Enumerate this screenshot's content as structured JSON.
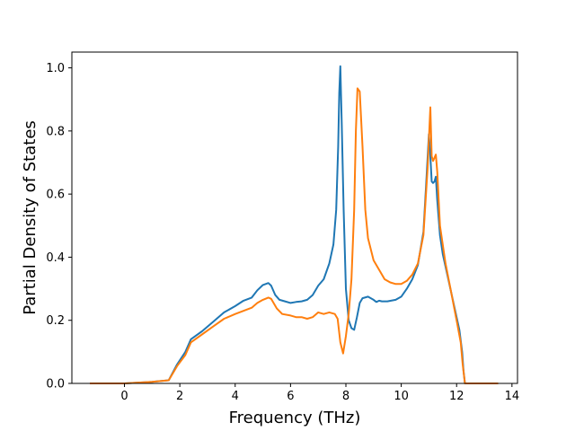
{
  "chart_data": {
    "type": "line",
    "title": "",
    "xlabel": "Frequency (THz)",
    "ylabel": "Partial Density of States",
    "xlim": [
      -1.9,
      14.2
    ],
    "ylim": [
      0.0,
      1.05
    ],
    "xticks": [
      0,
      2,
      4,
      6,
      8,
      10,
      12,
      14
    ],
    "xtick_labels": [
      "0",
      "2",
      "4",
      "6",
      "8",
      "10",
      "12",
      "14"
    ],
    "yticks": [
      0.0,
      0.2,
      0.4,
      0.6,
      0.8,
      1.0
    ],
    "ytick_labels": [
      "0.0",
      "0.2",
      "0.4",
      "0.6",
      "0.8",
      "1.0"
    ],
    "grid": false,
    "legend": "none",
    "series": [
      {
        "color": "#1f77b4",
        "x": [
          -1.25,
          0.0,
          1.0,
          1.6,
          1.9,
          2.2,
          2.4,
          2.8,
          3.2,
          3.6,
          4.0,
          4.3,
          4.6,
          4.8,
          5.0,
          5.2,
          5.3,
          5.45,
          5.6,
          5.8,
          6.0,
          6.2,
          6.4,
          6.6,
          6.8,
          7.0,
          7.2,
          7.4,
          7.55,
          7.65,
          7.72,
          7.76,
          7.8,
          7.85,
          7.92,
          8.0,
          8.1,
          8.2,
          8.3,
          8.4,
          8.5,
          8.6,
          8.8,
          9.0,
          9.1,
          9.2,
          9.3,
          9.5,
          9.8,
          10.0,
          10.2,
          10.4,
          10.6,
          10.8,
          10.9,
          11.0,
          11.05,
          11.1,
          11.15,
          11.2,
          11.25,
          11.3,
          11.4,
          11.5,
          11.7,
          11.9,
          12.1,
          12.2,
          12.25,
          12.3,
          13.5
        ],
        "y": [
          0.0,
          0.0,
          0.005,
          0.01,
          0.06,
          0.1,
          0.14,
          0.165,
          0.195,
          0.225,
          0.245,
          0.262,
          0.272,
          0.295,
          0.312,
          0.318,
          0.31,
          0.28,
          0.265,
          0.26,
          0.255,
          0.258,
          0.26,
          0.265,
          0.28,
          0.31,
          0.33,
          0.38,
          0.44,
          0.55,
          0.75,
          0.92,
          1.005,
          0.82,
          0.55,
          0.3,
          0.2,
          0.175,
          0.17,
          0.21,
          0.255,
          0.27,
          0.275,
          0.265,
          0.258,
          0.262,
          0.26,
          0.26,
          0.265,
          0.275,
          0.3,
          0.33,
          0.375,
          0.48,
          0.63,
          0.79,
          0.72,
          0.64,
          0.635,
          0.64,
          0.655,
          0.58,
          0.47,
          0.41,
          0.33,
          0.25,
          0.17,
          0.1,
          0.04,
          0.0,
          0.0
        ]
      },
      {
        "color": "#ff7f0e",
        "x": [
          -1.25,
          0.0,
          1.0,
          1.6,
          1.9,
          2.2,
          2.4,
          2.8,
          3.2,
          3.6,
          4.0,
          4.3,
          4.6,
          4.8,
          5.0,
          5.2,
          5.3,
          5.5,
          5.7,
          6.0,
          6.2,
          6.4,
          6.6,
          6.8,
          7.0,
          7.2,
          7.4,
          7.6,
          7.7,
          7.8,
          7.9,
          8.0,
          8.1,
          8.2,
          8.3,
          8.36,
          8.42,
          8.5,
          8.6,
          8.7,
          8.8,
          9.0,
          9.2,
          9.4,
          9.6,
          9.8,
          10.0,
          10.2,
          10.4,
          10.6,
          10.8,
          10.95,
          11.05,
          11.1,
          11.15,
          11.2,
          11.25,
          11.3,
          11.4,
          11.6,
          11.8,
          12.0,
          12.15,
          12.22,
          12.3,
          13.5
        ],
        "y": [
          0.0,
          0.0,
          0.005,
          0.01,
          0.055,
          0.09,
          0.13,
          0.155,
          0.18,
          0.205,
          0.22,
          0.23,
          0.24,
          0.255,
          0.265,
          0.272,
          0.268,
          0.238,
          0.22,
          0.215,
          0.21,
          0.21,
          0.205,
          0.21,
          0.225,
          0.22,
          0.225,
          0.22,
          0.205,
          0.13,
          0.095,
          0.15,
          0.22,
          0.33,
          0.55,
          0.8,
          0.935,
          0.925,
          0.75,
          0.55,
          0.46,
          0.39,
          0.36,
          0.33,
          0.32,
          0.315,
          0.315,
          0.325,
          0.345,
          0.38,
          0.47,
          0.68,
          0.875,
          0.72,
          0.705,
          0.715,
          0.725,
          0.67,
          0.5,
          0.38,
          0.29,
          0.2,
          0.13,
          0.06,
          0.0,
          0.0
        ]
      }
    ]
  }
}
